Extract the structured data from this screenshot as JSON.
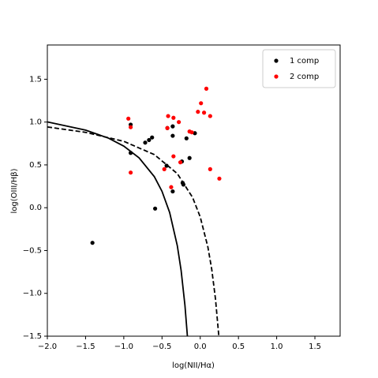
{
  "chart_data": {
    "type": "scatter",
    "xlabel": "log(NII/Hα)",
    "ylabel": "log(OIII/Hβ)",
    "xlim": [
      -2.0,
      1.83
    ],
    "ylim": [
      -1.5,
      1.9
    ],
    "xticks": [
      {
        "value": -2.0,
        "label": "−2.0"
      },
      {
        "value": -1.5,
        "label": "−1.5"
      },
      {
        "value": -1.0,
        "label": "−1.0"
      },
      {
        "value": -0.5,
        "label": "−0.5"
      },
      {
        "value": 0.0,
        "label": "0.0"
      },
      {
        "value": 0.5,
        "label": "0.5"
      },
      {
        "value": 1.0,
        "label": "1.0"
      },
      {
        "value": 1.5,
        "label": "1.5"
      }
    ],
    "yticks": [
      {
        "value": -1.5,
        "label": "−1.5"
      },
      {
        "value": -1.0,
        "label": "−1.0"
      },
      {
        "value": -0.5,
        "label": "−0.5"
      },
      {
        "value": 0.0,
        "label": "0.0"
      },
      {
        "value": 0.5,
        "label": "0.5"
      },
      {
        "value": 1.0,
        "label": "1.0"
      },
      {
        "value": 1.5,
        "label": "1.5"
      }
    ],
    "legend": "upper right",
    "series": [
      {
        "name": "1 comp",
        "color": "#000000",
        "x": [
          -1.41,
          -0.91,
          -0.91,
          -0.72,
          -0.67,
          -0.63,
          -0.59,
          -0.44,
          -0.43,
          -0.36,
          -0.36,
          -0.36,
          -0.24,
          -0.23,
          -0.22,
          -0.18,
          -0.14,
          -0.07
        ],
        "values": [
          -0.41,
          0.97,
          0.64,
          0.76,
          0.79,
          0.82,
          -0.01,
          0.49,
          0.93,
          0.95,
          0.84,
          0.19,
          0.54,
          0.29,
          0.27,
          0.81,
          0.58,
          0.87
        ]
      },
      {
        "name": "2 comp",
        "color": "#ff0000",
        "x": [
          -0.94,
          -0.91,
          -0.91,
          -0.47,
          -0.43,
          -0.42,
          -0.38,
          -0.35,
          -0.35,
          -0.28,
          -0.26,
          -0.14,
          -0.11,
          -0.03,
          0.01,
          0.05,
          0.08,
          0.13,
          0.13,
          0.25
        ],
        "values": [
          1.04,
          0.94,
          0.41,
          0.45,
          0.93,
          1.07,
          0.24,
          1.05,
          0.6,
          1.0,
          0.53,
          0.89,
          0.88,
          1.12,
          1.22,
          1.11,
          1.39,
          1.07,
          0.45,
          0.34
        ]
      }
    ],
    "lines": [
      {
        "style": "solid",
        "color": "#000000",
        "x": [
          -2.0,
          -1.5,
          -1.2,
          -1.0,
          -0.8,
          -0.6,
          -0.5,
          -0.4,
          -0.3,
          -0.25,
          -0.2,
          -0.168
        ],
        "values": [
          1.002,
          0.906,
          0.812,
          0.719,
          0.582,
          0.362,
          0.191,
          -0.056,
          -0.443,
          -0.733,
          -1.14,
          -1.498
        ]
      },
      {
        "style": "dashed",
        "color": "#000000",
        "x": [
          -2.0,
          -1.5,
          -1.0,
          -0.6,
          -0.3,
          -0.1,
          0.0,
          0.1,
          0.15,
          0.2,
          0.243
        ],
        "values": [
          0.943,
          0.88,
          0.775,
          0.62,
          0.398,
          0.12,
          -0.108,
          -0.459,
          -0.716,
          -1.069,
          -1.497
        ]
      }
    ]
  }
}
